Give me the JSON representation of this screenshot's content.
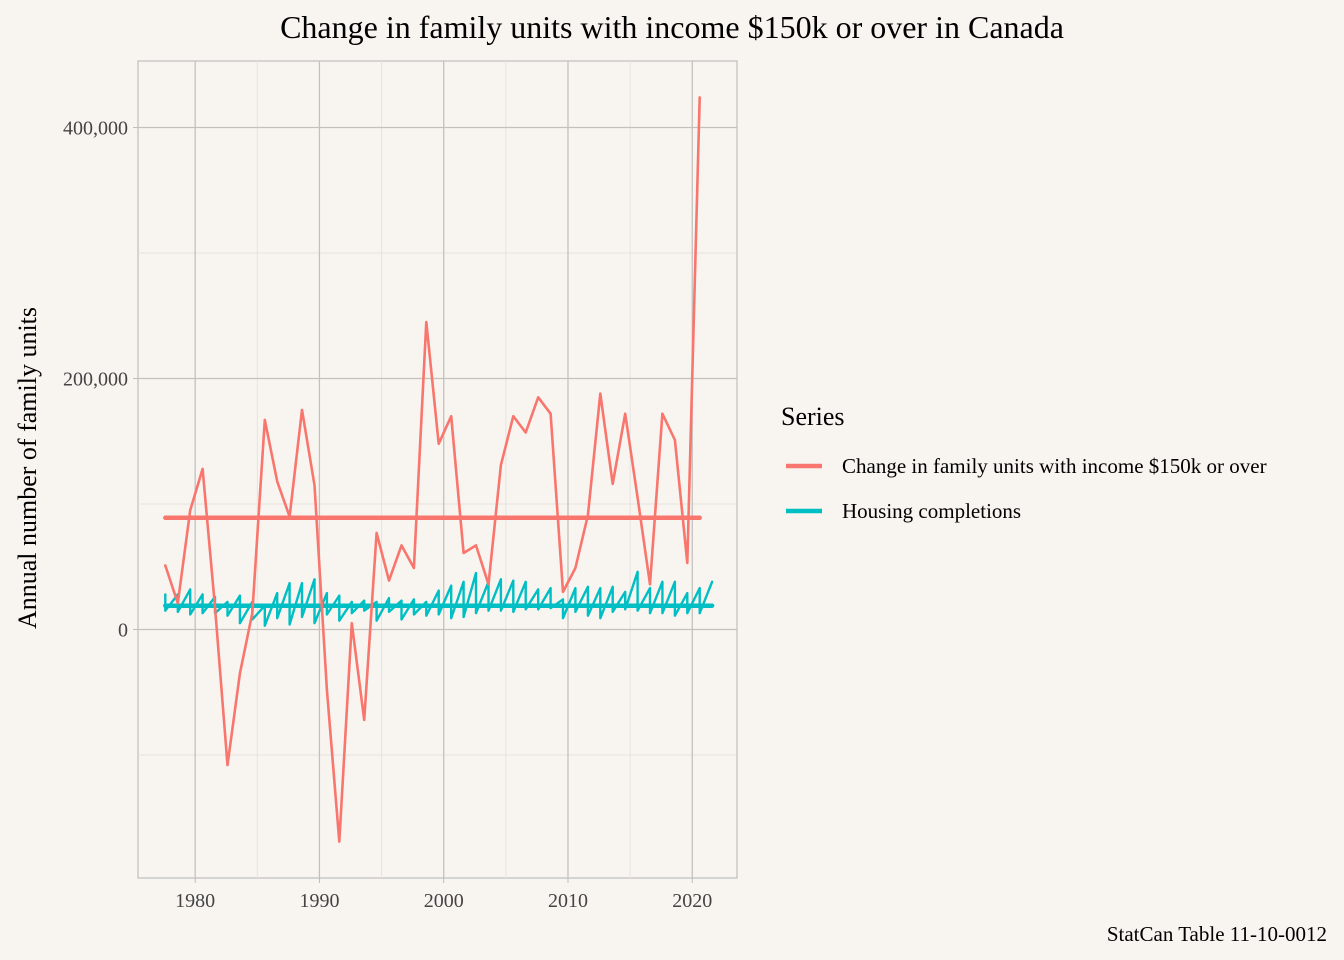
{
  "chart_data": {
    "type": "line",
    "title": "Change in family units with income $150k or over in Canada",
    "xlabel": "",
    "ylabel": "Annual number of family units",
    "caption": "StatCan Table 11-10-0012",
    "legend_title": "Series",
    "legend_position": "right",
    "grid": true,
    "xlim": [
      1975.4,
      2023.6
    ],
    "ylim": [
      -198000,
      453000
    ],
    "x_ticks": [
      1980,
      1990,
      2000,
      2010,
      2020
    ],
    "x_tick_labels": [
      "1980",
      "1990",
      "2000",
      "2010",
      "2020"
    ],
    "y_ticks": [
      0,
      200000,
      400000
    ],
    "y_tick_labels": [
      "0",
      "200,000",
      "400,000"
    ],
    "series": [
      {
        "name": "Change in family units with income $150k or over",
        "color": "#f8766d",
        "x": [
          1977.6,
          1978.6,
          1979.6,
          1980.6,
          1981.6,
          1982.6,
          1983.6,
          1984.6,
          1985.6,
          1986.6,
          1987.6,
          1988.6,
          1989.6,
          1990.6,
          1991.6,
          1992.6,
          1993.6,
          1994.6,
          1995.6,
          1996.6,
          1997.6,
          1998.6,
          1999.6,
          2000.6,
          2001.6,
          2002.6,
          2003.6,
          2004.6,
          2005.6,
          2006.6,
          2007.6,
          2008.6,
          2009.6,
          2010.6,
          2011.6,
          2012.6,
          2013.6,
          2014.6,
          2015.6,
          2016.6,
          2017.6,
          2018.6,
          2019.6,
          2020.6
        ],
        "values": [
          51000,
          21000,
          95000,
          128000,
          18000,
          -108000,
          -35000,
          13000,
          167000,
          118000,
          90000,
          175000,
          115000,
          -48000,
          -169000,
          5000,
          -72000,
          77000,
          39000,
          67000,
          49000,
          245000,
          148000,
          170000,
          61000,
          67000,
          36000,
          131000,
          170000,
          157000,
          185000,
          172000,
          30000,
          49000,
          91000,
          188000,
          116000,
          172000,
          105000,
          36000,
          172000,
          151000,
          53000,
          424000
        ]
      },
      {
        "name": "Housing completions",
        "color": "#00bfc4",
        "x": [
          1977.6,
          1977.6,
          1978.6,
          1978.6,
          1979.6,
          1979.6,
          1980.6,
          1980.6,
          1981.6,
          1981.6,
          1982.6,
          1982.6,
          1983.6,
          1983.6,
          1984.6,
          1984.6,
          1985.6,
          1985.6,
          1986.6,
          1986.6,
          1987.6,
          1987.6,
          1988.6,
          1988.6,
          1989.6,
          1989.6,
          1990.6,
          1990.6,
          1991.6,
          1991.6,
          1992.6,
          1992.6,
          1993.6,
          1993.6,
          1994.6,
          1994.6,
          1995.6,
          1995.6,
          1996.6,
          1996.6,
          1997.6,
          1997.6,
          1998.6,
          1998.6,
          1999.6,
          1999.6,
          2000.6,
          2000.6,
          2001.6,
          2001.6,
          2002.6,
          2002.6,
          2003.6,
          2003.6,
          2004.6,
          2004.6,
          2005.6,
          2005.6,
          2006.6,
          2006.6,
          2007.6,
          2007.6,
          2008.6,
          2008.6,
          2009.6,
          2009.6,
          2010.6,
          2010.6,
          2011.6,
          2011.6,
          2012.6,
          2012.6,
          2013.6,
          2013.6,
          2014.6,
          2014.6,
          2015.6,
          2015.6,
          2016.6,
          2016.6,
          2017.6,
          2017.6,
          2018.6,
          2018.6,
          2019.6,
          2019.6,
          2020.6,
          2020.6,
          2021.6
        ],
        "values": [
          28000,
          15000,
          28000,
          14000,
          32000,
          12000,
          28000,
          13000,
          26000,
          13000,
          22000,
          11000,
          27000,
          5000,
          22000,
          8000,
          19000,
          3000,
          29000,
          9000,
          37000,
          4000,
          37000,
          10000,
          40000,
          5000,
          29000,
          12000,
          27000,
          7000,
          22000,
          13000,
          23000,
          15000,
          22000,
          7000,
          25000,
          14000,
          23000,
          8000,
          24000,
          12000,
          22000,
          11000,
          31000,
          12000,
          35000,
          9000,
          38000,
          10000,
          45000,
          13000,
          38000,
          15000,
          40000,
          15000,
          39000,
          14000,
          38000,
          16000,
          32000,
          16000,
          33000,
          17000,
          24000,
          9000,
          33000,
          14000,
          34000,
          11000,
          33000,
          9000,
          34000,
          14000,
          30000,
          16000,
          46000,
          15000,
          33000,
          13000,
          38000,
          13000,
          38000,
          11000,
          29000,
          13000,
          33000,
          13000,
          38000
        ]
      },
      {
        "name": "Change in family units with income $150k or over (mean)",
        "color": "#f8766d",
        "x": [
          1977.6,
          2020.6
        ],
        "values": [
          89000,
          89000
        ]
      },
      {
        "name": "Housing completions (mean)",
        "color": "#00bfc4",
        "x": [
          1977.6,
          2021.6
        ],
        "values": [
          19000,
          19000
        ]
      }
    ],
    "legend": [
      {
        "label": "Change in family units with income $150k or over",
        "color": "#f8766d"
      },
      {
        "label": "Housing completions",
        "color": "#00bfc4"
      }
    ]
  }
}
